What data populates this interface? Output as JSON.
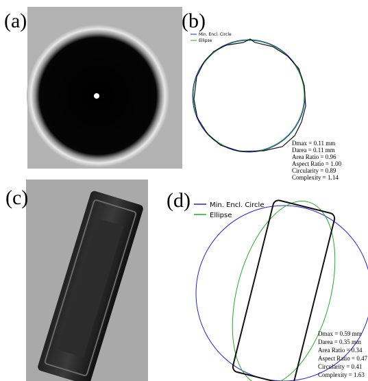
{
  "panels": [
    {
      "label": "(a)"
    },
    {
      "label": "(b)",
      "legend": [
        "Min. Encl. Circle",
        "Ellipse"
      ],
      "stats": [
        "Dmax = 0.11 mm",
        "Darea = 0.11 mm",
        "Area Ratio = 0.96",
        "Aspect Ratio = 1.00",
        "Circularity = 0.89",
        "Complexity = 1.14"
      ]
    },
    {
      "label": "(c)"
    },
    {
      "label": "(d)",
      "legend": [
        "Min. Encl. Circle",
        "Ellipse"
      ],
      "stats": [
        "Dmax = 0.59 mm",
        "Darea = 0.35 mm",
        "Area Ratio = 0.34",
        "Aspect Ratio = 0.47",
        "Circularity = 0.41",
        "Complexity = 1.63"
      ]
    }
  ]
}
